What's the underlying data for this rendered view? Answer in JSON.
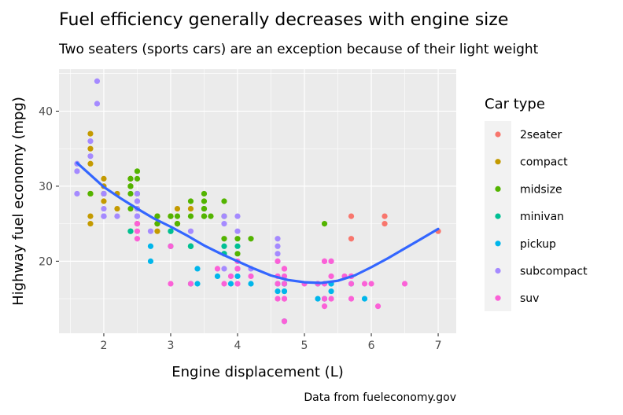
{
  "chart_data": {
    "type": "scatter",
    "title": "Fuel efficiency generally decreases with engine size",
    "subtitle": "Two seaters (sports cars) are an exception because of their light weight",
    "xlabel": "Engine displacement (L)",
    "ylabel": "Highway fuel economy (mpg)",
    "caption": "Data from fueleconomy.gov",
    "xlim": [
      1.33,
      7.27
    ],
    "ylim": [
      10.4,
      45.6
    ],
    "x_ticks": [
      2,
      3,
      4,
      5,
      6,
      7
    ],
    "y_ticks": [
      20,
      30,
      40
    ],
    "grid": true,
    "legend": {
      "title": "Car type",
      "position": "right"
    },
    "series": [
      {
        "name": "2seater",
        "color": "#F8766D",
        "points": [
          [
            5.7,
            26
          ],
          [
            5.7,
            23
          ],
          [
            6.2,
            26
          ],
          [
            6.2,
            25
          ],
          [
            7.0,
            24
          ]
        ]
      },
      {
        "name": "compact",
        "color": "#C49A00",
        "points": [
          [
            1.8,
            29
          ],
          [
            1.8,
            29
          ],
          [
            2.0,
            31
          ],
          [
            2.0,
            30
          ],
          [
            2.8,
            26
          ],
          [
            2.8,
            26
          ],
          [
            3.1,
            27
          ],
          [
            1.8,
            26
          ],
          [
            1.8,
            25
          ],
          [
            2.0,
            28
          ],
          [
            2.0,
            29
          ],
          [
            2.8,
            25
          ],
          [
            2.8,
            25
          ],
          [
            3.1,
            25
          ],
          [
            3.1,
            25
          ],
          [
            2.2,
            27
          ],
          [
            2.2,
            29
          ],
          [
            2.4,
            31
          ],
          [
            2.4,
            31
          ],
          [
            3.0,
            26
          ],
          [
            3.0,
            26
          ],
          [
            3.3,
            27
          ],
          [
            1.8,
            33
          ],
          [
            1.8,
            35
          ],
          [
            1.8,
            37
          ],
          [
            2.0,
            29
          ],
          [
            2.0,
            29
          ],
          [
            2.5,
            27
          ],
          [
            2.8,
            24
          ],
          [
            2.5,
            25
          ],
          [
            2.4,
            30
          ]
        ]
      },
      {
        "name": "midsize",
        "color": "#53B400",
        "points": [
          [
            2.8,
            26
          ],
          [
            3.1,
            26
          ],
          [
            4.2,
            23
          ],
          [
            2.4,
            29
          ],
          [
            2.4,
            27
          ],
          [
            3.1,
            25
          ],
          [
            3.5,
            28
          ],
          [
            3.6,
            26
          ],
          [
            3.8,
            26
          ],
          [
            3.8,
            28
          ],
          [
            3.5,
            29
          ],
          [
            3.3,
            26
          ],
          [
            3.0,
            26
          ],
          [
            3.5,
            26
          ],
          [
            3.5,
            27
          ],
          [
            2.4,
            30
          ],
          [
            2.5,
            29
          ],
          [
            3.3,
            28
          ],
          [
            3.5,
            27
          ],
          [
            2.5,
            31
          ],
          [
            2.5,
            32
          ],
          [
            2.8,
            25
          ],
          [
            4.0,
            23
          ],
          [
            5.3,
            25
          ],
          [
            2.4,
            24
          ],
          [
            3.3,
            22
          ],
          [
            3.5,
            26
          ],
          [
            3.8,
            23
          ],
          [
            4.0,
            21
          ],
          [
            2.4,
            31
          ],
          [
            2.4,
            30
          ],
          [
            3.0,
            24
          ],
          [
            1.8,
            29
          ]
        ]
      },
      {
        "name": "minivan",
        "color": "#00C094",
        "points": [
          [
            2.4,
            24
          ],
          [
            3.0,
            24
          ],
          [
            3.3,
            22
          ],
          [
            3.3,
            22
          ],
          [
            3.3,
            17
          ],
          [
            3.8,
            22
          ],
          [
            3.8,
            21
          ],
          [
            3.8,
            21
          ],
          [
            4.0,
            22
          ],
          [
            3.0,
            22
          ],
          [
            4.7,
            17
          ]
        ]
      },
      {
        "name": "pickup",
        "color": "#00B6EB",
        "points": [
          [
            2.7,
            20
          ],
          [
            2.7,
            22
          ],
          [
            3.4,
            19
          ],
          [
            3.4,
            17
          ],
          [
            3.9,
            17
          ],
          [
            4.7,
            17
          ],
          [
            4.7,
            16
          ],
          [
            4.7,
            12
          ],
          [
            5.2,
            17
          ],
          [
            5.2,
            15
          ],
          [
            3.7,
            18
          ],
          [
            4.7,
            16
          ],
          [
            4.7,
            17
          ],
          [
            5.7,
            17
          ],
          [
            5.9,
            15
          ],
          [
            4.2,
            17
          ],
          [
            4.6,
            16
          ],
          [
            5.4,
            16
          ],
          [
            4.0,
            18
          ],
          [
            4.0,
            19
          ],
          [
            4.6,
            17
          ],
          [
            5.4,
            17
          ],
          [
            5.4,
            17
          ],
          [
            4.7,
            17
          ],
          [
            5.3,
            15
          ]
        ]
      },
      {
        "name": "subcompact",
        "color": "#A58AFF",
        "points": [
          [
            1.6,
            33
          ],
          [
            1.6,
            32
          ],
          [
            1.8,
            34
          ],
          [
            1.8,
            36
          ],
          [
            1.9,
            44
          ],
          [
            1.9,
            41
          ],
          [
            2.0,
            29
          ],
          [
            2.0,
            26
          ],
          [
            2.0,
            26
          ],
          [
            2.0,
            29
          ],
          [
            2.0,
            27
          ],
          [
            2.0,
            26
          ],
          [
            2.2,
            26
          ],
          [
            2.5,
            29
          ],
          [
            2.5,
            26
          ],
          [
            2.7,
            24
          ],
          [
            3.8,
            26
          ],
          [
            3.8,
            25
          ],
          [
            4.0,
            26
          ],
          [
            4.0,
            24
          ],
          [
            4.6,
            21
          ],
          [
            4.6,
            22
          ],
          [
            4.6,
            23
          ],
          [
            5.4,
            20
          ],
          [
            1.6,
            29
          ],
          [
            2.5,
            27
          ],
          [
            2.5,
            28
          ],
          [
            2.5,
            28
          ],
          [
            2.5,
            26
          ],
          [
            2.5,
            26
          ],
          [
            3.3,
            24
          ],
          [
            3.8,
            19
          ],
          [
            4.2,
            19
          ],
          [
            4.6,
            20
          ]
        ]
      },
      {
        "name": "suv",
        "color": "#FB61D7",
        "points": [
          [
            5.3,
            20
          ],
          [
            5.3,
            15
          ],
          [
            5.3,
            20
          ],
          [
            5.7,
            17
          ],
          [
            6.0,
            17
          ],
          [
            5.7,
            15
          ],
          [
            6.5,
            17
          ],
          [
            3.0,
            22
          ],
          [
            3.7,
            19
          ],
          [
            3.9,
            18
          ],
          [
            4.7,
            12
          ],
          [
            4.7,
            19
          ],
          [
            4.7,
            18
          ],
          [
            5.2,
            17
          ],
          [
            5.7,
            18
          ],
          [
            5.9,
            17
          ],
          [
            4.0,
            17
          ],
          [
            4.7,
            15
          ],
          [
            4.7,
            17
          ],
          [
            5.3,
            17
          ],
          [
            5.7,
            18
          ],
          [
            6.1,
            14
          ],
          [
            2.5,
            25
          ],
          [
            2.5,
            24
          ],
          [
            2.5,
            23
          ],
          [
            4.6,
            20
          ],
          [
            5.4,
            15
          ],
          [
            5.4,
            18
          ],
          [
            4.0,
            19
          ],
          [
            4.0,
            20
          ],
          [
            4.0,
            17
          ],
          [
            4.6,
            17
          ],
          [
            5.0,
            17
          ],
          [
            4.2,
            18
          ],
          [
            4.6,
            15
          ],
          [
            5.6,
            18
          ],
          [
            3.3,
            17
          ],
          [
            3.8,
            17
          ],
          [
            4.0,
            19
          ],
          [
            4.6,
            18
          ],
          [
            5.4,
            20
          ],
          [
            3.0,
            17
          ],
          [
            4.7,
            15
          ],
          [
            4.7,
            19
          ],
          [
            5.3,
            14
          ],
          [
            5.7,
            18
          ]
        ]
      }
    ],
    "trend": {
      "name": "smooth",
      "color": "#3366FF",
      "points": [
        [
          1.6,
          33.1
        ],
        [
          1.8,
          31.5
        ],
        [
          2.0,
          29.9
        ],
        [
          2.25,
          28.4
        ],
        [
          2.5,
          27.0
        ],
        [
          2.75,
          25.7
        ],
        [
          3.0,
          24.6
        ],
        [
          3.25,
          23.4
        ],
        [
          3.5,
          22.1
        ],
        [
          3.75,
          21.0
        ],
        [
          4.0,
          20.0
        ],
        [
          4.25,
          19.0
        ],
        [
          4.5,
          18.1
        ],
        [
          4.75,
          17.5
        ],
        [
          5.0,
          17.2
        ],
        [
          5.25,
          17.1
        ],
        [
          5.5,
          17.4
        ],
        [
          5.75,
          18.1
        ],
        [
          6.0,
          19.2
        ],
        [
          6.25,
          20.4
        ],
        [
          6.5,
          21.7
        ],
        [
          6.75,
          23.0
        ],
        [
          7.0,
          24.3
        ]
      ]
    }
  }
}
